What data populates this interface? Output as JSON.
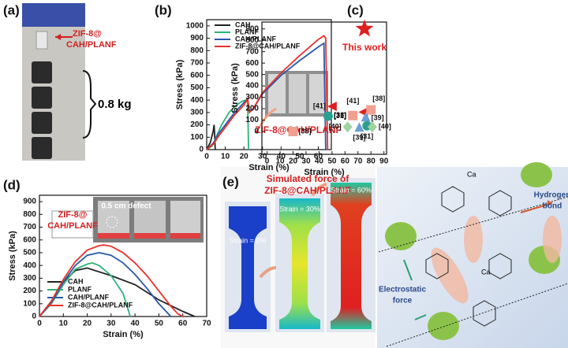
{
  "panel_a": {
    "label": "(a)",
    "sample_lines": [
      "ZIF-8@",
      "CAH/PLANF"
    ],
    "weight": "0.8 kg"
  },
  "chart_data": [
    {
      "type": "line",
      "panel_label": "(b)",
      "x_label": "Strain (%)",
      "y_label": "Stress (kPa)",
      "xlim": [
        0,
        67
      ],
      "xticks": [
        0,
        10,
        20,
        30,
        40,
        50,
        60
      ],
      "ylim": [
        0,
        1050
      ],
      "yticks": [
        0,
        100,
        200,
        300,
        400,
        500,
        600,
        700,
        800,
        900,
        1000
      ],
      "inset_label": "ZIF-8@CAH/PLANF",
      "legend": "upper left",
      "series": [
        {
          "name": "CAH",
          "color": "#222222",
          "x": [
            0,
            2,
            3.5,
            4,
            4.3,
            4.6
          ],
          "values": [
            0,
            60,
            150,
            200,
            120,
            0
          ]
        },
        {
          "name": "PLANF",
          "color": "#2db37a",
          "x": [
            0,
            3,
            5,
            8,
            12,
            16,
            19,
            21,
            22,
            22.5
          ],
          "values": [
            0,
            30,
            100,
            200,
            300,
            360,
            390,
            400,
            380,
            0
          ]
        },
        {
          "name": "CAH/PLANF",
          "color": "#2a58a8",
          "x": [
            0,
            4,
            6,
            10,
            15,
            20,
            22,
            23,
            25,
            30,
            40,
            50,
            60,
            63,
            64
          ],
          "values": [
            0,
            60,
            120,
            200,
            300,
            380,
            410,
            310,
            330,
            450,
            600,
            720,
            830,
            860,
            0
          ]
        },
        {
          "name": "ZIF-8@CAH/PLANF",
          "color": "#e8322c",
          "x": [
            0,
            4,
            6,
            10,
            15,
            20,
            22,
            23,
            25,
            30,
            40,
            50,
            60,
            63,
            64,
            65
          ],
          "values": [
            0,
            50,
            100,
            180,
            280,
            360,
            410,
            300,
            330,
            460,
            620,
            760,
            890,
            920,
            900,
            0
          ]
        }
      ]
    },
    {
      "type": "scatter",
      "panel_label": "(c)",
      "x_label": "Strain (%)",
      "y_label": "Stress (kPa)",
      "xlim": [
        -4,
        92
      ],
      "xticks": [
        0,
        10,
        20,
        30,
        40,
        50,
        60,
        70,
        80,
        90
      ],
      "ylim": [
        -200,
        960
      ],
      "yticks": [
        0,
        100,
        200,
        300,
        400,
        500,
        600,
        700,
        800,
        900
      ],
      "x": [
        75,
        50,
        47,
        66,
        74,
        80,
        76,
        62,
        71,
        77,
        81,
        20
      ],
      "values": [
        900,
        220,
        135,
        140,
        170,
        190,
        130,
        40,
        40,
        50,
        40,
        0
      ],
      "labels": [
        "This work",
        "[41]",
        "[31]",
        "[38]",
        "[41]",
        "[38]",
        "[39]",
        "[40]",
        "[39]",
        "[31]",
        "[40]",
        "[38]"
      ],
      "markers": [
        "star",
        "triangle-left",
        "circle",
        "square",
        "triangle-left",
        "square",
        "triangle-up",
        "diamond",
        "triangle-up",
        "circle",
        "diamond",
        "square"
      ],
      "colors": [
        "#e02020",
        "#e02020",
        "#2aa190",
        "#f0a090",
        "#e02020",
        "#f0a090",
        "#6aa0d8",
        "#9fd39f",
        "#6aa0d8",
        "#2aa190",
        "#9fd39f",
        "#f0a090"
      ]
    },
    {
      "type": "line",
      "panel_label": "(d)",
      "x_label": "Strain (%)",
      "y_label": "Stress (kPa)",
      "xlim": [
        0,
        70
      ],
      "xticks": [
        0,
        10,
        20,
        30,
        40,
        50,
        60,
        70
      ],
      "ylim": [
        0,
        950
      ],
      "yticks": [
        0,
        100,
        200,
        300,
        400,
        500,
        600,
        700,
        800,
        900
      ],
      "inset_label": "0.5 cm defect",
      "annotation_lines": [
        "ZIF-8@",
        "CAH/PLANF"
      ],
      "legend": "lower left",
      "series": [
        {
          "name": "CAH",
          "color": "#222222",
          "x": [
            0,
            5,
            10,
            15,
            20,
            25,
            30,
            40,
            50,
            60,
            65
          ],
          "values": [
            0,
            120,
            270,
            360,
            380,
            350,
            320,
            250,
            130,
            40,
            0
          ]
        },
        {
          "name": "PLANF",
          "color": "#2db37a",
          "x": [
            0,
            5,
            10,
            15,
            20,
            22,
            25,
            30,
            35,
            37,
            38
          ],
          "values": [
            0,
            100,
            250,
            370,
            410,
            420,
            400,
            320,
            180,
            60,
            0
          ]
        },
        {
          "name": "CAH/PLANF",
          "color": "#2a58a8",
          "x": [
            0,
            5,
            10,
            15,
            20,
            25,
            30,
            35,
            40,
            45,
            50,
            55
          ],
          "values": [
            0,
            110,
            270,
            400,
            480,
            500,
            480,
            420,
            330,
            220,
            100,
            0
          ]
        },
        {
          "name": "ZIF-8@CAH/PLANF",
          "color": "#e8322c",
          "x": [
            0,
            5,
            10,
            15,
            20,
            25,
            27,
            30,
            35,
            40,
            45,
            50,
            55,
            58,
            60
          ],
          "values": [
            0,
            120,
            290,
            430,
            520,
            555,
            560,
            550,
            500,
            420,
            320,
            200,
            80,
            20,
            0
          ]
        }
      ]
    }
  ],
  "panel_e": {
    "label": "(e)",
    "title_lines": [
      "Simulated force of",
      "ZIF-8@CAH/PLANF"
    ],
    "strains": [
      "Strain = 0%",
      "Strain = 30%",
      "Strain = 60%"
    ],
    "hydrogen_bond": [
      "Hydrogen",
      "bond"
    ],
    "electrostatic": [
      "Electrostatic",
      "force"
    ],
    "ions": [
      "Ca",
      "Ca"
    ]
  }
}
